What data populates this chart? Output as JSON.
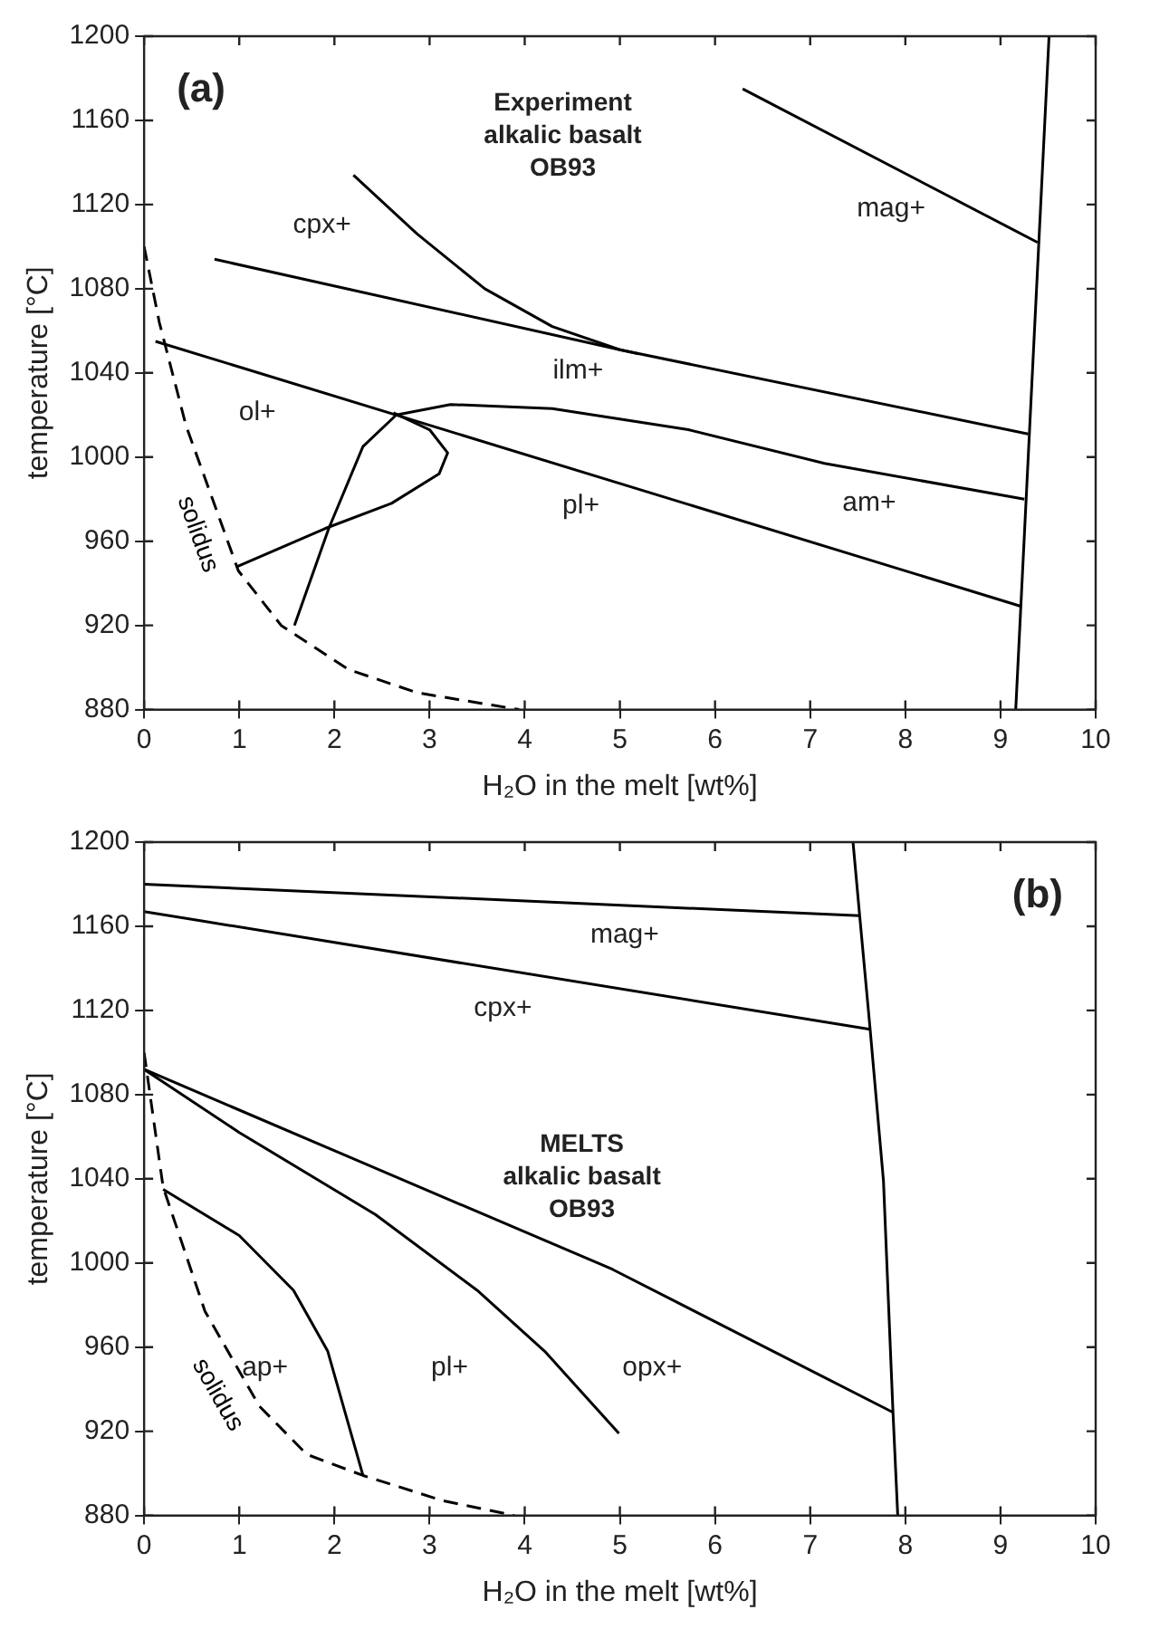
{
  "chart_data": [
    {
      "type": "line",
      "title": "(a)",
      "subtitle": "Experiment\nalkalic basalt\nOB93",
      "xlabel": "H₂O in the melt [wt%]",
      "ylabel": "temperature [°C]",
      "xlim": [
        0,
        10
      ],
      "xticks": [
        0,
        1,
        2,
        3,
        4,
        5,
        6,
        7,
        8,
        9,
        10
      ],
      "ylim": [
        880,
        1200
      ],
      "yticks": [
        880,
        920,
        960,
        1000,
        1040,
        1080,
        1120,
        1160,
        1200
      ],
      "series": [
        {
          "name": "solidus",
          "color": "#000000",
          "line_style": "dashed",
          "x": [
            0,
            0.16,
            0.44,
            0.99,
            1.44,
            2.15,
            2.87,
            3.94
          ],
          "values": [
            1100,
            1064,
            1015,
            946,
            920,
            899,
            888,
            880
          ]
        },
        {
          "color": "#000000",
          "x": [
            0.12,
            9.22
          ],
          "values": [
            1055,
            929
          ]
        },
        {
          "color": "#000000",
          "x": [
            0.74,
            5.0,
            9.29
          ],
          "values": [
            1094,
            1051,
            1011
          ]
        },
        {
          "color": "#000000",
          "x": [
            2.2,
            2.87,
            3.58,
            4.29,
            5.0,
            5.2
          ],
          "values": [
            1134,
            1106,
            1080,
            1062,
            1051,
            1049
          ]
        },
        {
          "color": "#000000",
          "x": [
            6.29,
            9.39
          ],
          "values": [
            1175,
            1102
          ]
        },
        {
          "color": "#000000",
          "x": [
            9.16,
            9.51
          ],
          "values": [
            880,
            1200
          ]
        },
        {
          "color": "#000000",
          "x": [
            1.58,
            1.94,
            2.3,
            2.65,
            3.22,
            4.29,
            5.72,
            7.15,
            9.25
          ],
          "values": [
            920,
            966,
            1005,
            1020,
            1025,
            1023,
            1013,
            997,
            980
          ]
        },
        {
          "color": "#000000",
          "x": [
            2.62,
            3.0,
            3.19,
            3.1,
            2.6,
            1.9,
            0.98
          ],
          "values": [
            1021,
            1013,
            1002,
            992,
            978,
            966,
            948
          ]
        }
      ],
      "annotations": [
        "cpx+",
        "mag+",
        "ilm+",
        "ol+",
        "pl+",
        "am+"
      ]
    },
    {
      "type": "line",
      "title": "(b)",
      "subtitle": "MELTS\nalkalic basalt\nOB93",
      "xlabel": "H₂O in the melt [wt%]",
      "ylabel": "temperature [°C]",
      "xlim": [
        0,
        10
      ],
      "xticks": [
        0,
        1,
        2,
        3,
        4,
        5,
        6,
        7,
        8,
        9,
        10
      ],
      "ylim": [
        880,
        1200
      ],
      "yticks": [
        880,
        920,
        960,
        1000,
        1040,
        1080,
        1120,
        1160,
        1200
      ],
      "series": [
        {
          "name": "solidus",
          "color": "#000000",
          "line_style": "dashed",
          "x": [
            0,
            0.2,
            0.64,
            1.21,
            1.71,
            2.3,
            3.14,
            3.89
          ],
          "values": [
            1100,
            1036,
            977,
            932,
            909,
            899,
            887,
            880
          ]
        },
        {
          "color": "#000000",
          "x": [
            0,
            7.52
          ],
          "values": [
            1180,
            1165
          ]
        },
        {
          "color": "#000000",
          "x": [
            0,
            7.63
          ],
          "values": [
            1167,
            1111
          ]
        },
        {
          "color": "#000000",
          "x": [
            7.45,
            7.52,
            7.63,
            7.77,
            7.87,
            7.92
          ],
          "values": [
            1200,
            1165,
            1111,
            1039,
            929,
            880
          ]
        },
        {
          "color": "#000000",
          "x": [
            0,
            2.07,
            4.92,
            6.35,
            7.87
          ],
          "values": [
            1092,
            1052,
            997,
            964,
            929
          ]
        },
        {
          "color": "#000000",
          "x": [
            0,
            1.0,
            2.43,
            3.5,
            4.21,
            4.99
          ],
          "values": [
            1092,
            1062,
            1023,
            987,
            958,
            919
          ]
        },
        {
          "color": "#000000",
          "x": [
            0.2,
            1.0,
            1.57,
            1.93,
            2.3
          ],
          "values": [
            1035,
            1013,
            987,
            958,
            899
          ]
        }
      ],
      "annotations": [
        "mag+",
        "cpx+",
        "ap+",
        "pl+",
        "opx+"
      ]
    }
  ]
}
